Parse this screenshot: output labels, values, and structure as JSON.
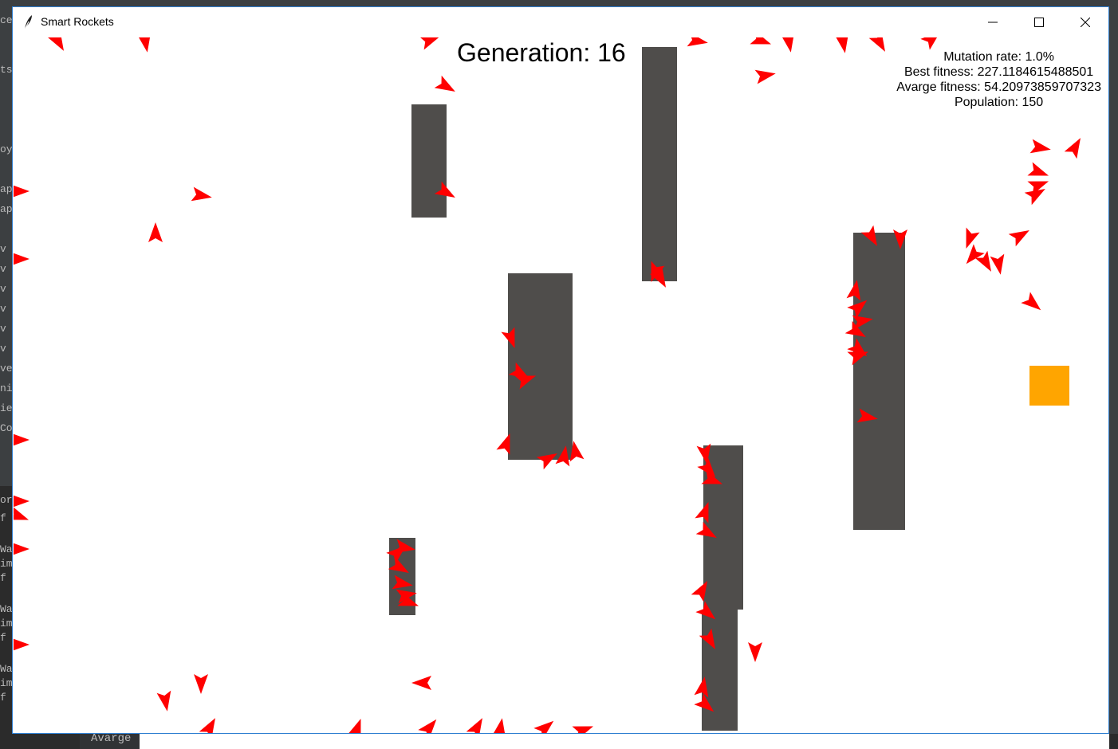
{
  "window": {
    "title": "Smart Rockets",
    "icon": "feather-icon",
    "controls": [
      "minimize-icon",
      "maximize-icon",
      "close-icon"
    ]
  },
  "simulation": {
    "generation_text": "Generation: 16",
    "mutation_rate_text": "Mutation rate: 1.0%",
    "best_fitness_text": "Best fitness: 227.1184615488501",
    "average_fitness_text": "Avarge fitness: 54.20973859707323",
    "population_text": "Population: 150"
  },
  "colors": {
    "rocket": "#ff0000",
    "obstacle": "#4f4d4b",
    "target": "#ffa500",
    "background": "#ffffff"
  },
  "background_app": {
    "left_fragments": [
      "cel",
      "ts",
      "oy",
      "apu",
      "apu",
      "v",
      "v",
      "v",
      "v",
      "v",
      "v",
      "ve",
      "nia",
      "ies",
      "Co",
      "or",
      "f",
      "Wa",
      "im",
      "f",
      "Wa",
      "im",
      "f",
      "Wa",
      "im",
      "f"
    ],
    "bottom_label": "Avarge"
  }
}
